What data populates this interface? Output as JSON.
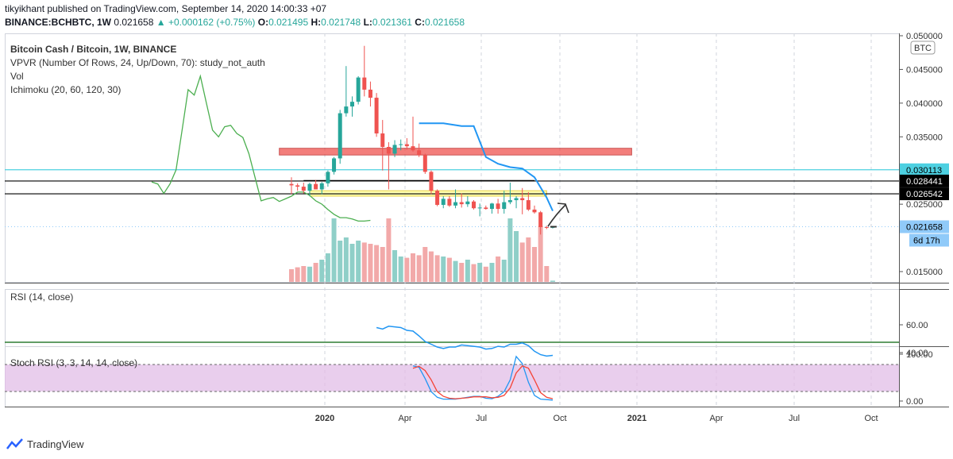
{
  "header": {
    "published": "tikyikhant published on TradingView.com, September 14, 2020 14:00:33 +07",
    "symbol": "BINANCE:BCHBTC, 1W",
    "last": "0.021658",
    "change": "▲ +0.000162 (+0.75%)",
    "o_label": "O:",
    "o": "0.021495",
    "h_label": "H:",
    "h": "0.021748",
    "l_label": "L:",
    "l": "0.021361",
    "c_label": "C:",
    "c": "0.021658"
  },
  "legend": {
    "title": "Bitcoin Cash / Bitcoin, 1W, BINANCE",
    "vpvr": "VPVR (Number Of Rows, 24, Up/Down, 70): study_not_auth",
    "vol": "Vol",
    "ichimoku": "Ichimoku (20, 60, 120, 30)",
    "rsi": "RSI (14, close)",
    "stoch": "Stoch RSI (3, 3, 14, 14, close)"
  },
  "colors": {
    "up": "#26a69a",
    "down": "#ef5350",
    "vol_up": "#8fcfc8",
    "vol_down": "#f2a9a9",
    "lagging": "#4caf50",
    "cloud_line": "#2196f3",
    "rsi": "#2196f3",
    "stoch_k": "#2196f3",
    "stoch_d": "#f44336",
    "cyan_line": "#4dd0e1",
    "band": "#e1bee7"
  },
  "price_axis": {
    "currency": "BTC",
    "ticks": [
      "0.050000",
      "0.045000",
      "0.040000",
      "0.035000",
      "0.025000",
      "0.015000"
    ],
    "labels": [
      {
        "text": "0.030113",
        "price": 0.030113,
        "bg": "#4dd0e1",
        "fg": "#000000"
      },
      {
        "text": "0.028441",
        "price": 0.028441,
        "bg": "#000000",
        "fg": "#ffffff"
      },
      {
        "text": "0.026542",
        "price": 0.026542,
        "bg": "#000000",
        "fg": "#ffffff"
      },
      {
        "text": "0.021658",
        "price": 0.021658,
        "bg": "#90caf9",
        "fg": "#000000"
      }
    ],
    "countdown": "6d 17h"
  },
  "rsi_axis": {
    "ticks": [
      "60.00",
      "40.00"
    ]
  },
  "stoch_axis": {
    "ticks": [
      "100.00",
      "0.00"
    ]
  },
  "time_axis": {
    "ticks": [
      "2020",
      "Apr",
      "Jul",
      "Oct",
      "2021",
      "Apr",
      "Jul",
      "Oct"
    ],
    "bold": [
      0,
      4
    ]
  },
  "footer": {
    "brand": "TradingView"
  },
  "chart_data": {
    "type": "candlestick",
    "title": "Bitcoin Cash / Bitcoin, 1W, BINANCE",
    "symbol": "BCHBTC",
    "currency": "BTC",
    "ylim": [
      0.0125,
      0.0505
    ],
    "candles_week_index": [
      0,
      1,
      2,
      3,
      4,
      5,
      6,
      7,
      8,
      9,
      10,
      11,
      12,
      13,
      14,
      15,
      16,
      17,
      18,
      19,
      20,
      21,
      22,
      23,
      24,
      25,
      26,
      27,
      28,
      29,
      30,
      31,
      32,
      33,
      34,
      35,
      36,
      37,
      38,
      39,
      40,
      41,
      42,
      43
    ],
    "candles": [
      [
        0.028,
        0.029,
        0.0265,
        0.0278
      ],
      [
        0.0278,
        0.0281,
        0.027,
        0.0276
      ],
      [
        0.0276,
        0.0282,
        0.0266,
        0.027
      ],
      [
        0.027,
        0.0282,
        0.0262,
        0.028
      ],
      [
        0.028,
        0.0286,
        0.0272,
        0.0272
      ],
      [
        0.0272,
        0.0283,
        0.0265,
        0.0281
      ],
      [
        0.0281,
        0.03,
        0.0276,
        0.0298
      ],
      [
        0.0298,
        0.032,
        0.0294,
        0.0318
      ],
      [
        0.0318,
        0.039,
        0.031,
        0.0385
      ],
      [
        0.0385,
        0.0455,
        0.038,
        0.0395
      ],
      [
        0.0395,
        0.041,
        0.038,
        0.0402
      ],
      [
        0.0402,
        0.044,
        0.0398,
        0.0438
      ],
      [
        0.0438,
        0.0485,
        0.041,
        0.042
      ],
      [
        0.042,
        0.0432,
        0.0395,
        0.0408
      ],
      [
        0.0408,
        0.0415,
        0.035,
        0.0355
      ],
      [
        0.0355,
        0.0375,
        0.03,
        0.0335
      ],
      [
        0.0335,
        0.0342,
        0.0272,
        0.0325
      ],
      [
        0.0325,
        0.0345,
        0.032,
        0.0338
      ],
      [
        0.0338,
        0.0346,
        0.033,
        0.0339
      ],
      [
        0.0339,
        0.0348,
        0.0331,
        0.0336
      ],
      [
        0.0336,
        0.038,
        0.0328,
        0.033
      ],
      [
        0.033,
        0.034,
        0.032,
        0.0323
      ],
      [
        0.0323,
        0.0325,
        0.0295,
        0.0298
      ],
      [
        0.0298,
        0.03,
        0.0265,
        0.027
      ],
      [
        0.027,
        0.0272,
        0.0247,
        0.0249
      ],
      [
        0.0249,
        0.0262,
        0.0244,
        0.0258
      ],
      [
        0.0258,
        0.0262,
        0.0246,
        0.0248
      ],
      [
        0.0248,
        0.0272,
        0.0244,
        0.0253
      ],
      [
        0.0253,
        0.0266,
        0.0245,
        0.025
      ],
      [
        0.025,
        0.0262,
        0.0246,
        0.0254
      ],
      [
        0.0254,
        0.0256,
        0.0242,
        0.0244
      ],
      [
        0.0244,
        0.0251,
        0.0232,
        0.0245
      ],
      [
        0.0245,
        0.0248,
        0.0242,
        0.0243
      ],
      [
        0.0243,
        0.0252,
        0.0236,
        0.0251
      ],
      [
        0.0251,
        0.0258,
        0.0236,
        0.0243
      ],
      [
        0.0243,
        0.027,
        0.0236,
        0.0253
      ],
      [
        0.0253,
        0.0282,
        0.025,
        0.0256
      ],
      [
        0.0256,
        0.0262,
        0.0244,
        0.0259
      ],
      [
        0.0259,
        0.0274,
        0.0235,
        0.0256
      ],
      [
        0.0256,
        0.0268,
        0.024,
        0.0242
      ],
      [
        0.0242,
        0.0248,
        0.0236,
        0.0238
      ],
      [
        0.0238,
        0.024,
        0.0205,
        0.0216
      ],
      [
        0.0216,
        0.0218,
        0.0213,
        0.0215
      ],
      [
        0.0215,
        0.0217,
        0.0214,
        0.0217
      ]
    ],
    "volume_rel": [
      0.2,
      0.23,
      0.25,
      0.24,
      0.3,
      0.35,
      0.45,
      1.0,
      0.65,
      0.7,
      0.6,
      0.65,
      0.62,
      0.6,
      0.58,
      0.55,
      1.0,
      0.5,
      0.4,
      0.38,
      0.45,
      0.42,
      0.55,
      0.48,
      0.42,
      0.4,
      0.38,
      0.33,
      0.3,
      0.35,
      0.28,
      0.3,
      0.24,
      0.3,
      0.4,
      0.35,
      1.0,
      0.8,
      0.62,
      0.7,
      0.55,
      0.88,
      0.25,
      0.02
    ],
    "lagging_span_week_index": [
      -23,
      -22,
      -21,
      -20,
      -19,
      -18,
      -17,
      -16,
      -15,
      -14,
      -13,
      -12,
      -11,
      -10,
      -9,
      -8,
      -7,
      -6,
      -5,
      -4,
      -3,
      -2,
      -1,
      0,
      1,
      2,
      3,
      4,
      5,
      6,
      7,
      8,
      9,
      10,
      11,
      12,
      13
    ],
    "lagging_span": [
      0.0283,
      0.028,
      0.0266,
      0.028,
      0.0301,
      0.036,
      0.042,
      0.0412,
      0.044,
      0.04,
      0.036,
      0.035,
      0.0365,
      0.0367,
      0.0355,
      0.0349,
      0.0325,
      0.029,
      0.0255,
      0.0258,
      0.026,
      0.0254,
      0.0258,
      0.0262,
      0.0268,
      0.0268,
      0.0263,
      0.0255,
      0.025,
      0.0242,
      0.0235,
      0.023,
      0.023,
      0.0228,
      0.0225,
      0.0225,
      0.0226
    ],
    "cloud_line_week_index": [
      21,
      25,
      28,
      30,
      32,
      34,
      36,
      38,
      40,
      42,
      43
    ],
    "cloud_line": [
      0.037,
      0.037,
      0.0366,
      0.0366,
      0.032,
      0.031,
      0.0305,
      0.0303,
      0.029,
      0.026,
      0.024
    ],
    "horizontal_lines": [
      0.030113,
      0.028441,
      0.026542,
      0.021658
    ],
    "zones": [
      {
        "from_week": -2,
        "to_week": 56,
        "low": 0.0323,
        "high": 0.0333,
        "color": "#ef5350"
      },
      {
        "from_week": 3,
        "to_week": 42,
        "low": 0.0262,
        "high": 0.027,
        "color": "#ffff99"
      }
    ],
    "rsi": {
      "name": "RSI",
      "ticks": [
        60,
        40
      ],
      "ylim": [
        25,
        70
      ],
      "x_week_index": [
        14,
        15,
        16,
        17,
        18,
        19,
        20,
        21,
        22,
        23,
        24,
        25,
        26,
        27,
        28,
        29,
        30,
        31,
        32,
        33,
        34,
        35,
        36,
        37,
        38,
        39,
        40,
        41,
        42,
        43
      ],
      "values": [
        58,
        57,
        59,
        58.5,
        58,
        56,
        55.5,
        52,
        48,
        46,
        44,
        43,
        44,
        44,
        45.5,
        45,
        44.5,
        44,
        42.5,
        43,
        44.5,
        44,
        46,
        46,
        47,
        45,
        41,
        38.5,
        37.5,
        38
      ]
    },
    "stoch_rsi": {
      "name": "Stoch RSI",
      "ticks": [
        100,
        0
      ],
      "ylim": [
        -10,
        110
      ],
      "band": [
        20,
        80
      ],
      "x_week_index": [
        20,
        21,
        22,
        23,
        24,
        25,
        26,
        27,
        28,
        29,
        30,
        31,
        32,
        33,
        34,
        35,
        36,
        37,
        38,
        39,
        40,
        41,
        42,
        43
      ],
      "k": [
        75,
        72,
        48,
        20,
        8,
        4,
        4,
        4,
        6,
        8,
        10,
        10,
        6,
        5,
        10,
        20,
        45,
        95,
        80,
        40,
        12,
        4,
        3,
        2
      ],
      "d": [
        70,
        74,
        65,
        45,
        20,
        10,
        6,
        5,
        6,
        7,
        9,
        9,
        9,
        7,
        8,
        12,
        28,
        60,
        75,
        70,
        45,
        18,
        8,
        5
      ]
    },
    "x_axis_ticks": [
      "2020",
      "Apr",
      "Jul",
      "Oct",
      "2021",
      "Apr",
      "Jul",
      "Oct"
    ]
  }
}
